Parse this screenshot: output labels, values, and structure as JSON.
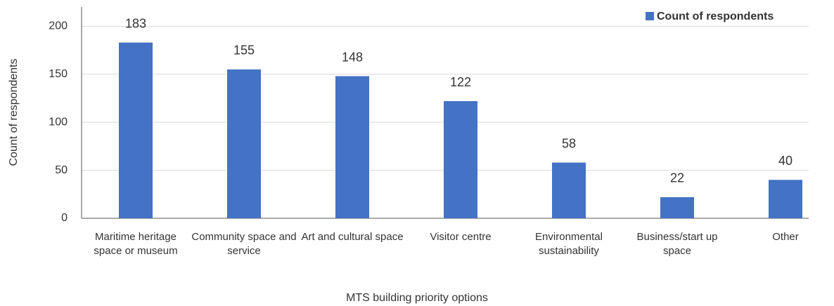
{
  "chart_data": {
    "type": "bar",
    "x_label": "MTS building priority options",
    "y_label": "Count of respondents",
    "categories": [
      "Maritime heritage space or museum",
      "Community space and service",
      "Art and cultural space",
      "Visitor centre",
      "Environmental sustainability",
      "Business/start up space",
      "Other"
    ],
    "series": [
      {
        "name": "Count of respondents",
        "color": "#4472c4",
        "values": [
          183,
          155,
          148,
          122,
          58,
          22,
          40
        ]
      }
    ],
    "ylim": [
      0,
      220
    ],
    "yticks": [
      0,
      50,
      100,
      150,
      200
    ],
    "grid": true,
    "legend": "top-right"
  }
}
